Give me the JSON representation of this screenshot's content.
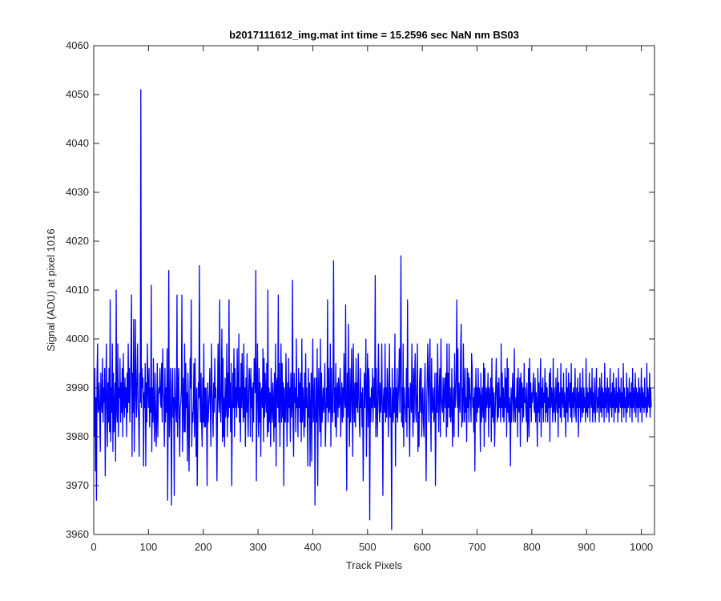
{
  "chart_data": {
    "type": "line",
    "title": "b2017111612_img.mat int time = 15.2596 sec  NaN nm BS03",
    "xlabel": "Track Pixels",
    "ylabel": "Signal (ADU) at pixel 1016",
    "xlim": [
      0,
      1024
    ],
    "ylim": [
      3960,
      4060
    ],
    "xticks": [
      0,
      100,
      200,
      300,
      400,
      500,
      600,
      700,
      800,
      900,
      1000
    ],
    "yticks": [
      3960,
      3970,
      3980,
      3990,
      4000,
      4010,
      4020,
      4030,
      4040,
      4050,
      4060
    ],
    "grid": false,
    "legend": "none",
    "series": [
      {
        "color": "#0000ff",
        "x_start": 1,
        "x_step": 1,
        "values": [
          3980,
          3994,
          3973,
          3988,
          3967,
          3992,
          3999,
          3985,
          3986,
          3991,
          3984,
          3977,
          3993,
          3988,
          3985,
          3996,
          3983,
          3990,
          3987,
          3994,
          3972,
          3988,
          3999,
          3986,
          3978,
          3991,
          3983,
          3994,
          3981,
          4008,
          3979,
          3990,
          3985,
          3999,
          3977,
          3993,
          3981,
          3986,
          3991,
          3975,
          4010,
          3986,
          3983,
          3999,
          3980,
          3990,
          3988,
          3996,
          3983,
          3991,
          3985,
          3994,
          3980,
          3997,
          3988,
          3984,
          3992,
          3986,
          3990,
          3980,
          3993,
          3985,
          3999,
          3987,
          3994,
          3983,
          3990,
          3997,
          4009,
          3976,
          3993,
          3985,
          4004,
          3977,
          3989,
          4004,
          3988,
          3984,
          3993,
          3999,
          3986,
          3984,
          3976,
          3993,
          3987,
          4051,
          3986,
          3994,
          3990,
          3992,
          3974,
          3989,
          3986,
          3995,
          3974,
          3991,
          3983,
          3999,
          3990,
          3986,
          3994,
          3982,
          3990,
          3985,
          4011,
          3977,
          3990,
          3983,
          3996,
          3985,
          3979,
          3993,
          3986,
          3978,
          3984,
          3995,
          3980,
          3988,
          3990,
          3989,
          3994,
          3987,
          3986,
          3995,
          3983,
          3998,
          3989,
          3988,
          3978,
          3994,
          3983,
          3990,
          3985,
          3998,
          3967,
          3986,
          4014,
          3980,
          3984,
          3994,
          3985,
          3966,
          3990,
          3994,
          3984,
          3988,
          3968,
          3994,
          3988,
          3985,
          3983,
          4009,
          3980,
          3990,
          3994,
          3984,
          3976,
          3986,
          3987,
          3990,
          4009,
          3977,
          3988,
          3992,
          3981,
          3999,
          3981,
          3995,
          3986,
          3989,
          3975,
          3993,
          3986,
          3973,
          3984,
          3996,
          3990,
          4008,
          3978,
          3985,
          3983,
          3987,
          3995,
          3980,
          3996,
          3986,
          3976,
          3990,
          3970,
          3983,
          3991,
          3988,
          4015,
          3988,
          3983,
          3993,
          3983,
          3978,
          3992,
          3983,
          3999,
          3982,
          3990,
          3982,
          3990,
          3985,
          3970,
          3991,
          3983,
          3986,
          3989,
          3994,
          3985,
          3978,
          3999,
          3990,
          3986,
          3980,
          3991,
          3985,
          3996,
          3988,
          3990,
          3983,
          3971,
          3986,
          3999,
          3988,
          3985,
          4008,
          3988,
          3983,
          3990,
          4002,
          3979,
          3996,
          3980,
          3988,
          3978,
          3992,
          3984,
          3986,
          3999,
          3980,
          3993,
          3984,
          4008,
          3986,
          3991,
          3981,
          3995,
          3970,
          3984,
          3993,
          3986,
          3998,
          3980,
          3994,
          3986,
          3990,
          3984,
          3998,
          3988,
          3986,
          4001,
          3983,
          3990,
          3979,
          3995,
          3986,
          3997,
          3988,
          3983,
          3999,
          3984,
          3990,
          3978,
          3992,
          3985,
          3997,
          3986,
          3980,
          3989,
          3994,
          3991,
          3980,
          3994,
          3986,
          3990,
          3979,
          3991,
          3983,
          3996,
          3993,
          3989,
          4014,
          3971,
          3988,
          3999,
          3986,
          3980,
          3994,
          3983,
          3991,
          3976,
          3989,
          3990,
          3986,
          3998,
          3979,
          3996,
          3984,
          3993,
          3988,
          3985,
          3995,
          3980,
          4010,
          3981,
          3990,
          3983,
          3989,
          3978,
          3994,
          3986,
          3983,
          3991,
          3987,
          3979,
          3993,
          3982,
          3999,
          3974,
          3990,
          3992,
          3986,
          4009,
          3983,
          3995,
          3978,
          3988,
          3999,
          3983,
          3995,
          3984,
          3991,
          3970,
          3990,
          3983,
          3983,
          3997,
          3988,
          3978,
          3991,
          3983,
          3996,
          3986,
          3990,
          3979,
          3993,
          3984,
          3986,
          4012,
          3983,
          3976,
          3993,
          3987,
          3990,
          3981,
          4000,
          3986,
          3988,
          3980,
          3994,
          3986,
          3991,
          3983,
          3993,
          3979,
          4000,
          3983,
          3990,
          3986,
          3980,
          3993,
          3982,
          3997,
          3986,
          3990,
          3984,
          3974,
          3994,
          3984,
          3991,
          3974,
          3986,
          3993,
          3975,
          3989,
          4000,
          3983,
          3986,
          3992,
          3966,
          3984,
          3992,
          3983,
          3998,
          3970,
          3988,
          3994,
          3985,
          3981,
          4000,
          3978,
          3993,
          3983,
          3986,
          3990,
          3985,
          3988,
          3995,
          3978,
          3983,
          3990,
          3986,
          4008,
          3983,
          3994,
          3985,
          3986,
          3999,
          3978,
          3994,
          3986,
          3983,
          3992,
          4016,
          3985,
          3990,
          3982,
          3995,
          3980,
          3989,
          3991,
          3984,
          3992,
          3986,
          3988,
          3994,
          3980,
          3986,
          3991,
          3983,
          3990,
          3984,
          3997,
          3988,
          3986,
          4007,
          3985,
          3969,
          3993,
          3984,
          4003,
          3986,
          3978,
          3994,
          3983,
          3988,
          3998,
          3985,
          3976,
          3999,
          3988,
          3983,
          3991,
          3982,
          3996,
          3986,
          3991,
          3985,
          3997,
          3990,
          3983,
          3980,
          3994,
          3986,
          3989,
          3982,
          3990,
          3971,
          3983,
          3993,
          3986,
          3990,
          4000,
          3976,
          3988,
          3997,
          3982,
          3994,
          3991,
          3963,
          3988,
          3983,
          3990,
          3986,
          3994,
          3983,
          3988,
          3992,
          3986,
          4013,
          3980,
          3994,
          3986,
          3980,
          3990,
          3999,
          3987,
          3983,
          3991,
          3985,
          3987,
          3999,
          3985,
          3968,
          3988,
          3990,
          3985,
          3999,
          3983,
          3990,
          3984,
          3994,
          3990,
          3980,
          3988,
          3999,
          3984,
          3990,
          3983,
          3961,
          3994,
          3986,
          3983,
          3990,
          3985,
          4001,
          3974,
          3990,
          3984,
          3994,
          3983,
          3988,
          3991,
          3998,
          3985,
          3996,
          4017,
          3983,
          3990,
          3982,
          3999,
          3978,
          3990,
          3986,
          3986,
          3983,
          3994,
          3980,
          4008,
          3986,
          3990,
          3983,
          3976,
          3991,
          3990,
          3985,
          3999,
          3986,
          3980,
          3994,
          3983,
          3992,
          3997,
          3985,
          3983,
          3990,
          3999,
          3977,
          3985,
          3978,
          3991,
          3994,
          3985,
          3994,
          3980,
          3988,
          3990,
          3983,
          3980,
          3989,
          3995,
          3982,
          3971,
          3986,
          3992,
          3999,
          3990,
          3983,
          3994,
          4000,
          3986,
          3977,
          3996,
          3985,
          3986,
          3990,
          3983,
          3985,
          3993,
          3970,
          3983,
          3993,
          3985,
          3999,
          3988,
          3981,
          3990,
          3994,
          3980,
          4000,
          3988,
          3986,
          3985,
          3992,
          3983,
          3989,
          3992,
          3986,
          3993,
          3980,
          3999,
          3982,
          3993,
          3986,
          3999,
          3984,
          3990,
          3983,
          3986,
          3994,
          3978,
          3985,
          3990,
          3980,
          3997,
          3986,
          3988,
          3993,
          4008,
          3986,
          3998,
          3980,
          3991,
          3988,
          3985,
          3998,
          4003,
          3982,
          3990,
          3983,
          3999,
          3988,
          3983,
          3994,
          3985,
          3988,
          3979,
          3994,
          3986,
          3993,
          3983,
          3992,
          3989,
          3987,
          3983,
          3997,
          3994,
          3986,
          3988,
          3981,
          3990,
          3973,
          3988,
          3994,
          3983,
          3990,
          3985,
          3994,
          3986,
          3990,
          3988,
          3977,
          3993,
          3983,
          3986,
          3990,
          3984,
          3995,
          3978,
          3994,
          3988,
          3983,
          3990,
          3986,
          3988,
          3993,
          3980,
          3990,
          3986,
          3987,
          3992,
          3979,
          3996,
          3984,
          3990,
          3983,
          3989,
          3978,
          3984,
          3990,
          3996,
          3988,
          3983,
          3991,
          3984,
          3992,
          3986,
          3988,
          3983,
          3999,
          3986,
          3993,
          3984,
          3990,
          3983,
          3986,
          3994,
          3986,
          3992,
          3980,
          3996,
          3985,
          3994,
          3983,
          3988,
          3986,
          3974,
          3990,
          3983,
          3988,
          3993,
          3987,
          3983,
          3998,
          3986,
          3983,
          3988,
          3986,
          3992,
          3980,
          3994,
          3986,
          3985,
          3992,
          3978,
          3993,
          3986,
          3991,
          3983,
          3990,
          3984,
          3995,
          3987,
          3990,
          3986,
          3983,
          3991,
          3979,
          3984,
          3994,
          3980,
          3996,
          3986,
          3991,
          3983,
          3989,
          3987,
          3990,
          3993,
          3986,
          3985,
          3992,
          3983,
          3989,
          3986,
          3978,
          3994,
          3985,
          3991,
          3983,
          3988,
          3996,
          3980,
          3990,
          3986,
          3992,
          3983,
          3989,
          3987,
          3994,
          3983,
          3991,
          3985,
          3990,
          3983,
          3988,
          3986,
          3993,
          3979,
          3994,
          3986,
          3990,
          3988,
          3983,
          3996,
          3985,
          3990,
          3986,
          3983,
          3992,
          3988,
          3985,
          3994,
          3980,
          3991,
          3986,
          3989,
          3984,
          3995,
          3983,
          3990,
          3988,
          3986,
          3993,
          3984,
          3989,
          3986,
          3980,
          3994,
          3985,
          3990,
          3983,
          3993,
          3988,
          3986,
          3991,
          3984,
          3995,
          3983,
          3989,
          3986,
          3990,
          3984,
          3988,
          3994,
          3985,
          3983,
          3990,
          3986,
          3992,
          3980,
          3989,
          3986,
          3993,
          3983,
          3990,
          3987,
          3984,
          3994,
          3985,
          3990,
          3986,
          3988,
          3983,
          3996,
          3985,
          3990,
          3984,
          3989,
          3986,
          3993,
          3983,
          3990,
          3988,
          3986,
          3994,
          3983,
          3989,
          3985,
          3992,
          3986,
          3983,
          3990,
          3994,
          3985,
          3988,
          3986,
          3990,
          3983,
          3992,
          3987,
          3985,
          3993,
          3984,
          3990,
          3986,
          3989,
          3983,
          3995,
          3986,
          3990,
          3984,
          3988,
          3992,
          3985,
          3990,
          3983,
          3987,
          3994,
          3986,
          3989,
          3984,
          3991,
          3986,
          3993,
          3983,
          3990,
          3987,
          3985,
          3992,
          3986,
          3989,
          3983,
          3994,
          3985,
          3990,
          3988,
          3986,
          3992,
          3983,
          3989,
          3986,
          3995,
          3984,
          3990,
          3986,
          3988,
          3983,
          3993,
          3985,
          3990,
          3986,
          3987,
          3992,
          3984,
          3989,
          3986,
          3991,
          3983,
          3994,
          3986,
          3990,
          3985,
          3988,
          3993,
          3984,
          3990,
          3986,
          3989,
          3983,
          3992,
          3986,
          3990,
          3985,
          3987,
          3994,
          3983,
          3990,
          3986,
          3989,
          3985,
          3992,
          3986,
          3988,
          3984,
          3995,
          3985,
          3990,
          3987,
          3986,
          3993,
          3984,
          3990,
          3986
        ]
      }
    ]
  }
}
